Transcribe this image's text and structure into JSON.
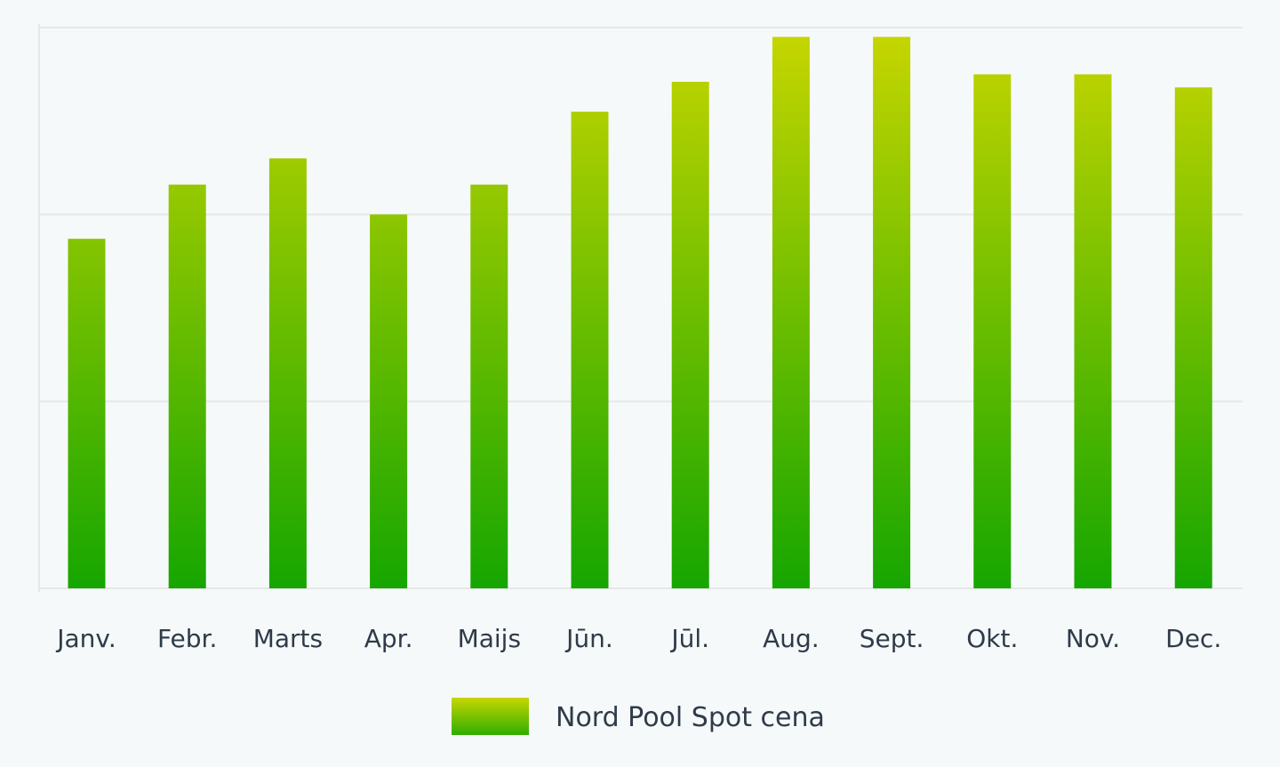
{
  "chart_data": {
    "type": "bar",
    "categories": [
      "Janv.",
      "Febr.",
      "Marts",
      "Apr.",
      "Maijs",
      "Jūn.",
      "Jūl.",
      "Aug.",
      "Sept.",
      "Okt.",
      "Nov.",
      "Dec."
    ],
    "series": [
      {
        "name": "Nord Pool Spot cena",
        "values": [
          1.87,
          2.16,
          2.3,
          2.0,
          2.16,
          2.55,
          2.71,
          2.95,
          2.95,
          2.75,
          2.75,
          2.68
        ]
      }
    ],
    "ylim": [
      0,
      3
    ],
    "gridlines": [
      0,
      1,
      2,
      3
    ],
    "y_tick_labels_shown": false,
    "grid": true,
    "legend_position": "bottom-center",
    "colors": {
      "bar_top": "#c8d600",
      "bar_bottom": "#16a600",
      "grid": "#e6e8e6",
      "text": "#2f3b4a",
      "background": "#f6f9fa"
    }
  }
}
